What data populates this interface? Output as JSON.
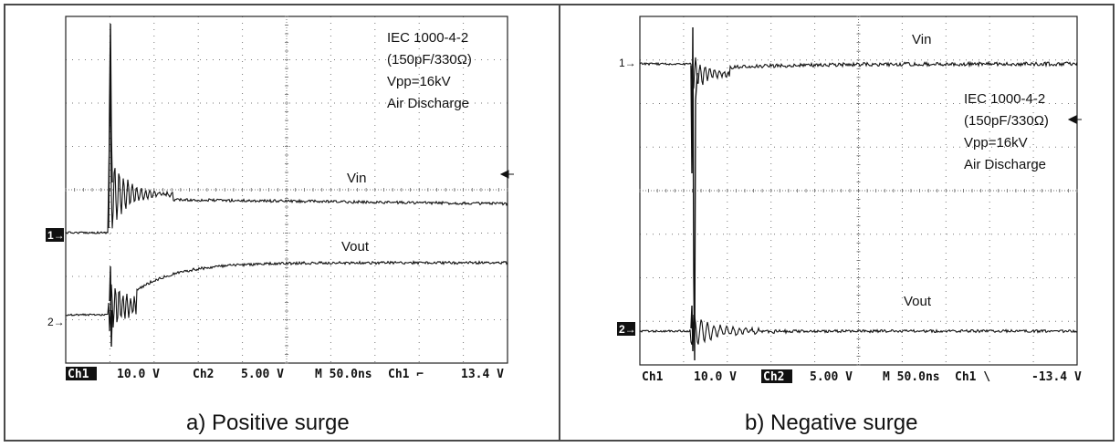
{
  "chart_data": [
    {
      "type": "line",
      "caption": "a) Positive surge",
      "annotation": [
        "IEC 1000-4-2",
        "(150pF/330Ω)",
        "Vpp=16kV",
        "Air Discharge"
      ],
      "series": [
        {
          "name": "Vin",
          "marker": "1→"
        },
        {
          "name": "Vout",
          "marker": "2→"
        }
      ],
      "status_bar": [
        {
          "text": "Ch1",
          "inverted": true
        },
        {
          "text": "10.0 V",
          "inverted": false
        },
        {
          "text": "Ch2",
          "inverted": false
        },
        {
          "text": "5.00 V",
          "inverted": false
        },
        {
          "text": "M 50.0ns",
          "inverted": false
        },
        {
          "text": "Ch1 ⌐",
          "inverted": false
        },
        {
          "text": "13.4 V",
          "inverted": false
        }
      ],
      "grid": true
    },
    {
      "type": "line",
      "caption": "b) Negative surge",
      "annotation": [
        "IEC 1000-4-2",
        "(150pF/330Ω)",
        "Vpp=16kV",
        "Air Discharge"
      ],
      "series": [
        {
          "name": "Vin",
          "marker": "1→"
        },
        {
          "name": "Vout",
          "marker": "2→"
        }
      ],
      "status_bar": [
        {
          "text": "Ch1",
          "inverted": false
        },
        {
          "text": "10.0 V",
          "inverted": false
        },
        {
          "text": "Ch2",
          "inverted": true
        },
        {
          "text": "5.00 V",
          "inverted": false
        },
        {
          "text": "M 50.0ns",
          "inverted": false
        },
        {
          "text": "Ch1 \\",
          "inverted": false
        },
        {
          "text": "-13.4 V",
          "inverted": false
        }
      ],
      "grid": true
    }
  ]
}
